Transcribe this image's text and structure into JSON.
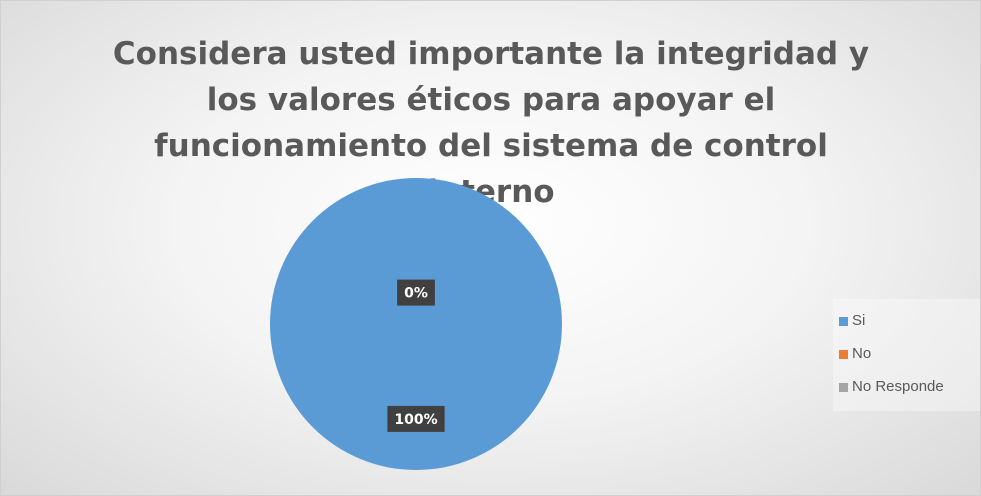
{
  "chart_data": {
    "type": "pie",
    "title": "Considera usted importante la integridad y los valores éticos para apoyar el funcionamiento del sistema de control interno",
    "categories": [
      "Si",
      "No",
      "No Responde"
    ],
    "values": [
      100,
      0,
      0
    ],
    "value_labels": [
      "100%",
      "0%",
      null
    ],
    "colors": [
      "#5b9bd5",
      "#ed7d31",
      "#a5a5a5"
    ],
    "legend": "right"
  }
}
